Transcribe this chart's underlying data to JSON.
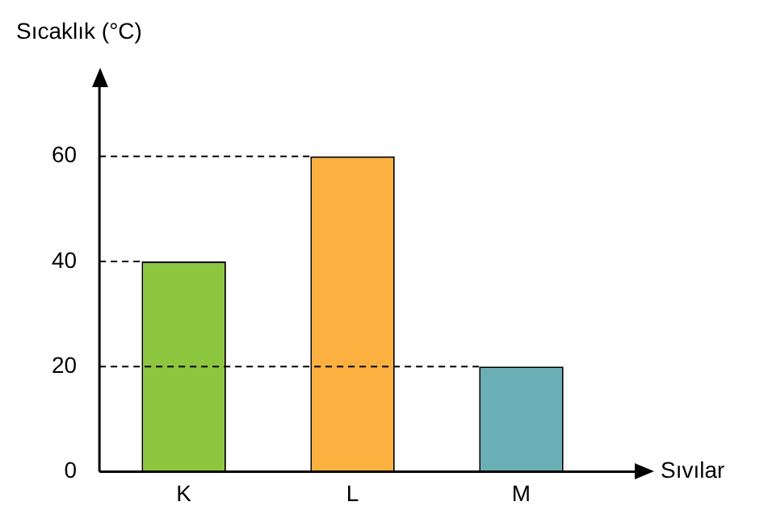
{
  "chart_data": {
    "type": "bar",
    "xlabel": "Sıvılar",
    "ylabel": "Sıcaklık (°C)",
    "categories": [
      "K",
      "L",
      "M"
    ],
    "values": [
      40,
      60,
      20
    ],
    "colors": [
      "#8dc63f",
      "#fbb040",
      "#6aafb5"
    ],
    "ylim": [
      0,
      75
    ],
    "yticks": [
      0,
      20,
      40,
      60
    ],
    "grid": false,
    "legend": false,
    "ref_lines": [
      {
        "axis": "y",
        "value": 60,
        "line_style": "dashed"
      },
      {
        "axis": "y",
        "value": 40,
        "line_style": "dashed"
      },
      {
        "axis": "y",
        "value": 20,
        "line_style": "dashed"
      }
    ]
  }
}
